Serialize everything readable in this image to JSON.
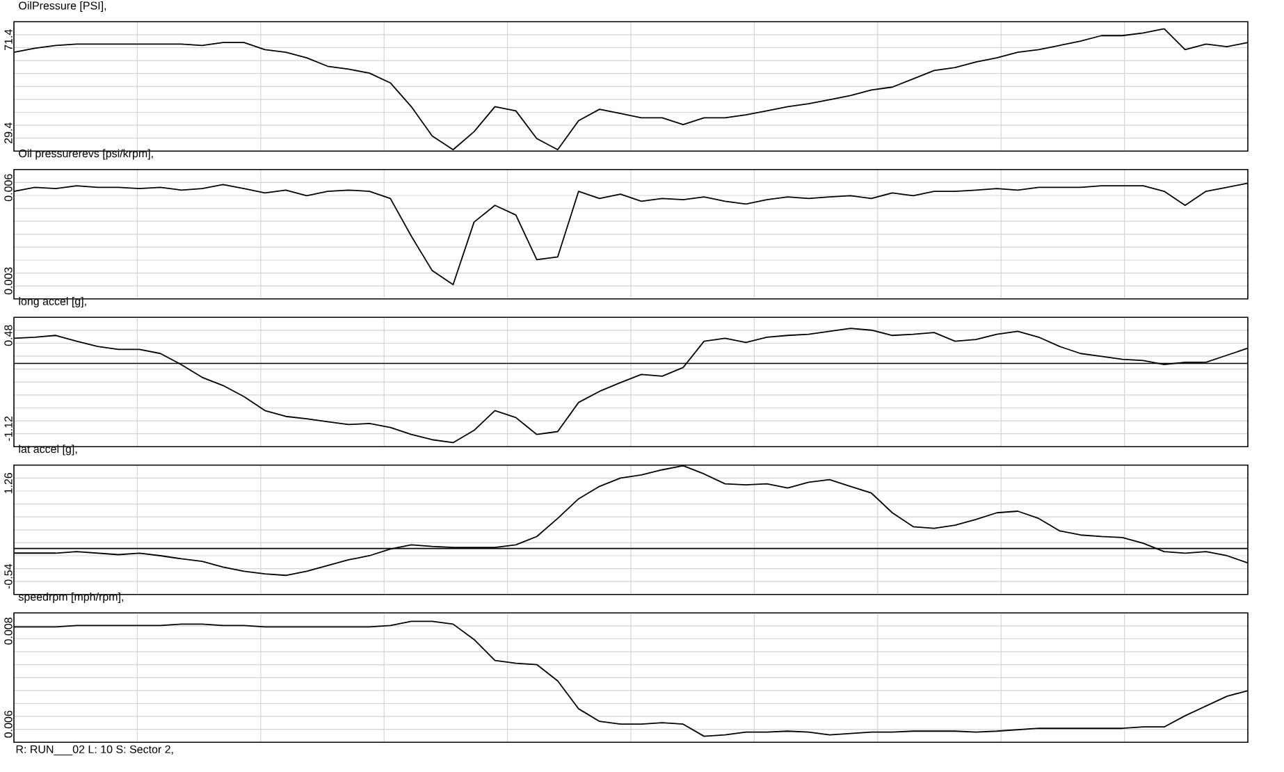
{
  "chart_data": [
    {
      "type": "line",
      "title": "OilPressure [PSI],",
      "categories": [
        null,
        null,
        null,
        null,
        null,
        null,
        null,
        null,
        null,
        null,
        null,
        null,
        null,
        null,
        null,
        null,
        null,
        null,
        null,
        null,
        null,
        null,
        null,
        null,
        null,
        null,
        null,
        null,
        null,
        null,
        null,
        null,
        null,
        null,
        null,
        null,
        null,
        null,
        null,
        null,
        null,
        null,
        null,
        null,
        null,
        null,
        null,
        null,
        null,
        null,
        null,
        null,
        null,
        null,
        null,
        null,
        null,
        null,
        null,
        null
      ],
      "values": [
        65.8,
        67.6,
        68.9,
        69.5,
        69.5,
        69.5,
        69.5,
        69.5,
        69.5,
        68.9,
        70.2,
        70.2,
        67.0,
        65.8,
        63.3,
        59.5,
        58.2,
        56.4,
        52.0,
        41.3,
        28.1,
        21.9,
        30.0,
        41.3,
        39.4,
        26.9,
        21.9,
        35.0,
        40.1,
        38.2,
        36.3,
        36.3,
        33.2,
        36.3,
        36.3,
        37.6,
        39.4,
        41.3,
        42.6,
        44.4,
        46.3,
        48.8,
        50.1,
        53.8,
        57.6,
        58.9,
        61.4,
        63.3,
        65.8,
        67.0,
        68.9,
        70.8,
        73.3,
        73.3,
        74.5,
        76.4,
        67.0,
        69.5,
        68.3,
        70.2
      ],
      "color": "#000000",
      "ylim": [
        21.25,
        79.55
      ],
      "yticks": [
        29.4,
        71.4
      ],
      "grid": true
    },
    {
      "type": "line",
      "title": "Oil pressurerevs [psi/krpm],",
      "categories": [
        null,
        null,
        null,
        null,
        null,
        null,
        null,
        null,
        null,
        null,
        null,
        null,
        null,
        null,
        null,
        null,
        null,
        null,
        null,
        null,
        null,
        null,
        null,
        null,
        null,
        null,
        null,
        null,
        null,
        null,
        null,
        null,
        null,
        null,
        null,
        null,
        null,
        null,
        null,
        null,
        null,
        null,
        null,
        null,
        null,
        null,
        null,
        null,
        null,
        null,
        null,
        null,
        null,
        null,
        null,
        null,
        null,
        null,
        null,
        null
      ],
      "values": [
        0.00588,
        0.00601,
        0.00597,
        0.00606,
        0.00601,
        0.00601,
        0.00597,
        0.00601,
        0.00592,
        0.00597,
        0.0061,
        0.00597,
        0.00583,
        0.00592,
        0.00574,
        0.00588,
        0.00592,
        0.00588,
        0.00565,
        0.00444,
        0.00333,
        0.00288,
        0.00489,
        0.00543,
        0.00512,
        0.00368,
        0.00377,
        0.00588,
        0.00565,
        0.00579,
        0.00556,
        0.00565,
        0.00561,
        0.0057,
        0.00556,
        0.00547,
        0.00561,
        0.0057,
        0.00565,
        0.0057,
        0.00574,
        0.00565,
        0.00583,
        0.00574,
        0.00588,
        0.00588,
        0.00592,
        0.00597,
        0.00592,
        0.00601,
        0.00601,
        0.00601,
        0.00606,
        0.00606,
        0.00606,
        0.00588,
        0.00543,
        0.00588,
        0.00601,
        0.00614
      ],
      "color": "#000000",
      "ylim": [
        0.00242,
        0.00658
      ],
      "yticks": [
        0.003,
        0.006
      ],
      "grid": true
    },
    {
      "type": "line",
      "title": "long accel [g],",
      "categories": [
        null,
        null,
        null,
        null,
        null,
        null,
        null,
        null,
        null,
        null,
        null,
        null,
        null,
        null,
        null,
        null,
        null,
        null,
        null,
        null,
        null,
        null,
        null,
        null,
        null,
        null,
        null,
        null,
        null,
        null,
        null,
        null,
        null,
        null,
        null,
        null,
        null,
        null,
        null,
        null,
        null,
        null,
        null,
        null,
        null,
        null,
        null,
        null,
        null,
        null,
        null,
        null,
        null,
        null,
        null,
        null,
        null,
        null,
        null,
        null
      ],
      "values": [
        0.43,
        0.45,
        0.48,
        0.38,
        0.29,
        0.24,
        0.24,
        0.17,
        -0.02,
        -0.24,
        -0.38,
        -0.57,
        -0.81,
        -0.91,
        -0.95,
        -1.0,
        -1.05,
        -1.03,
        -1.1,
        -1.22,
        -1.31,
        -1.36,
        -1.15,
        -0.81,
        -0.93,
        -1.22,
        -1.17,
        -0.67,
        -0.48,
        -0.33,
        -0.19,
        -0.22,
        -0.07,
        0.38,
        0.43,
        0.36,
        0.45,
        0.48,
        0.5,
        0.55,
        0.6,
        0.57,
        0.48,
        0.5,
        0.53,
        0.38,
        0.41,
        0.5,
        0.55,
        0.45,
        0.29,
        0.17,
        0.12,
        0.07,
        0.05,
        -0.02,
        0.02,
        0.02,
        0.14,
        0.26
      ],
      "color": "#000000",
      "ylim": [
        -1.43,
        0.79
      ],
      "yticks": [
        -1.12,
        0.48
      ],
      "grid": true,
      "ref_lines": [
        {
          "axis": "y",
          "value": 0,
          "color": "#000000"
        }
      ]
    },
    {
      "type": "line",
      "title": "lat accel [g],",
      "categories": [
        null,
        null,
        null,
        null,
        null,
        null,
        null,
        null,
        null,
        null,
        null,
        null,
        null,
        null,
        null,
        null,
        null,
        null,
        null,
        null,
        null,
        null,
        null,
        null,
        null,
        null,
        null,
        null,
        null,
        null,
        null,
        null,
        null,
        null,
        null,
        null,
        null,
        null,
        null,
        null,
        null,
        null,
        null,
        null,
        null,
        null,
        null,
        null,
        null,
        null,
        null,
        null,
        null,
        null,
        null,
        null,
        null,
        null,
        null,
        null
      ],
      "values": [
        -0.09,
        -0.09,
        -0.09,
        -0.06,
        -0.09,
        -0.12,
        -0.09,
        -0.14,
        -0.2,
        -0.25,
        -0.36,
        -0.44,
        -0.49,
        -0.52,
        -0.44,
        -0.33,
        -0.22,
        -0.14,
        -0.01,
        0.07,
        0.04,
        0.02,
        0.02,
        0.02,
        0.07,
        0.23,
        0.58,
        0.96,
        1.2,
        1.36,
        1.42,
        1.52,
        1.6,
        1.44,
        1.25,
        1.23,
        1.25,
        1.17,
        1.28,
        1.33,
        1.2,
        1.07,
        0.69,
        0.42,
        0.39,
        0.45,
        0.56,
        0.69,
        0.72,
        0.58,
        0.34,
        0.26,
        0.23,
        0.21,
        0.1,
        -0.06,
        -0.09,
        -0.06,
        -0.14,
        -0.28
      ],
      "color": "#000000",
      "ylim": [
        -0.89,
        1.61
      ],
      "yticks": [
        -0.54,
        1.26
      ],
      "grid": true,
      "ref_lines": [
        {
          "axis": "y",
          "value": 0,
          "color": "#000000"
        }
      ]
    },
    {
      "type": "line",
      "title": "speedrpm [mph/rpm],",
      "categories": [
        null,
        null,
        null,
        null,
        null,
        null,
        null,
        null,
        null,
        null,
        null,
        null,
        null,
        null,
        null,
        null,
        null,
        null,
        null,
        null,
        null,
        null,
        null,
        null,
        null,
        null,
        null,
        null,
        null,
        null,
        null,
        null,
        null,
        null,
        null,
        null,
        null,
        null,
        null,
        null,
        null,
        null,
        null,
        null,
        null,
        null,
        null,
        null,
        null,
        null,
        null,
        null,
        null,
        null,
        null,
        null,
        null,
        null,
        null,
        null
      ],
      "values": [
        0.00809,
        0.00809,
        0.00809,
        0.00812,
        0.00812,
        0.00812,
        0.00812,
        0.00812,
        0.00815,
        0.00815,
        0.00812,
        0.00812,
        0.00809,
        0.00809,
        0.00809,
        0.00809,
        0.00809,
        0.00809,
        0.00812,
        0.00821,
        0.00821,
        0.00815,
        0.00782,
        0.00737,
        0.00731,
        0.00728,
        0.00693,
        0.00633,
        0.00606,
        0.006,
        0.006,
        0.00603,
        0.006,
        0.00574,
        0.00577,
        0.00583,
        0.00583,
        0.00585,
        0.00583,
        0.00577,
        0.0058,
        0.00583,
        0.00583,
        0.00585,
        0.00585,
        0.00585,
        0.00583,
        0.00585,
        0.00588,
        0.00591,
        0.00591,
        0.00591,
        0.00591,
        0.00591,
        0.00594,
        0.00594,
        0.00618,
        0.00639,
        0.0066,
        0.00672
      ],
      "color": "#000000",
      "ylim": [
        0.00561,
        0.00839
      ],
      "yticks": [
        0.006,
        0.008
      ],
      "grid": true,
      "annotations": [
        "R: RUN___02  L: 10  S: Sector 2,"
      ]
    }
  ]
}
